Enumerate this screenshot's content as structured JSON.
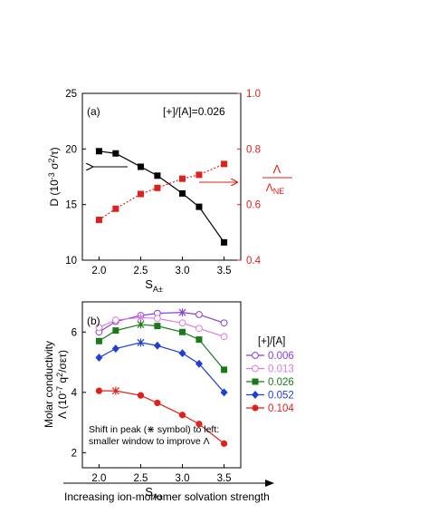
{
  "chart_data": [
    {
      "panel_label": "(a)",
      "type": "line",
      "annotation": "[+]/[A]=0.026",
      "x_label": {
        "main": "S",
        "sub": "A±"
      },
      "x_ticks": [
        "2.0",
        "2.5",
        "3.0",
        "3.5"
      ],
      "xlim": [
        1.8,
        3.7
      ],
      "x": [
        2.0,
        2.2,
        2.5,
        2.7,
        3.0,
        3.2,
        3.5
      ],
      "left_axis": {
        "label": {
          "pre": "D (10",
          "exp1": "-3",
          "mid": " σ",
          "exp2": "2",
          "post": "/τ)"
        },
        "ylim": [
          10,
          25
        ],
        "ticks": [
          "10",
          "15",
          "20",
          "25"
        ],
        "color": "#000000"
      },
      "right_axis": {
        "label_num": "Λ",
        "label_den": {
          "main": "Λ",
          "sub": "NE"
        },
        "ylim": [
          0.4,
          1.0
        ],
        "ticks": [
          "0.4",
          "0.6",
          "0.8",
          "1.0"
        ],
        "color": "#e0201b"
      },
      "series": [
        {
          "axis": "left",
          "color": "#000000",
          "line": "solid",
          "marker": "square",
          "values": [
            19.8,
            19.6,
            18.4,
            17.6,
            16.0,
            14.8,
            11.6
          ]
        },
        {
          "axis": "right",
          "color": "#e0201b",
          "line": "dotted",
          "marker": "square",
          "values": [
            0.545,
            0.585,
            0.638,
            0.66,
            0.693,
            0.707,
            0.746
          ]
        }
      ],
      "arrows": [
        {
          "points_to": "left_axis",
          "color": "#000000"
        },
        {
          "points_to": "right_axis",
          "color": "#e0201b"
        }
      ]
    },
    {
      "panel_label": "(b)",
      "type": "line",
      "x_label": {
        "main": "S",
        "sub": "A±"
      },
      "x_ticks": [
        "2.0",
        "2.5",
        "3.0",
        "3.5"
      ],
      "xlim": [
        1.8,
        3.7
      ],
      "x": [
        2.0,
        2.2,
        2.5,
        2.7,
        3.0,
        3.2,
        3.5
      ],
      "y_label_line1": "Molar conductivity",
      "y_label_line2": {
        "pre": "Λ (10",
        "exp1": "-7",
        "mid": " q",
        "exp2": "2",
        "post": "/σετ)"
      },
      "ylim": [
        1.5,
        7.0
      ],
      "y_ticks": [
        "2",
        "4",
        "6"
      ],
      "legend_title": "[+]/[A]",
      "legend_position": "right",
      "peak_marker": "x",
      "note_line1": "Shift in peak (⋇ symbol) to left:",
      "note_line2": "smaller window to improve Λ",
      "series": [
        {
          "name": "0.006",
          "color": "#8a3fd1",
          "marker": "circle-open",
          "peak_index": 4,
          "values": [
            6.0,
            6.35,
            6.55,
            6.62,
            6.65,
            6.58,
            6.3
          ]
        },
        {
          "name": "0.013",
          "color": "#d77ee0",
          "marker": "circle-open",
          "peak_index": 2,
          "values": [
            6.15,
            6.4,
            6.48,
            6.45,
            6.3,
            6.12,
            5.85
          ]
        },
        {
          "name": "0.026",
          "color": "#1a7a1a",
          "marker": "square",
          "peak_index": 2,
          "values": [
            5.7,
            6.05,
            6.25,
            6.2,
            6.0,
            5.75,
            4.75
          ]
        },
        {
          "name": "0.052",
          "color": "#1f3fd8",
          "marker": "diamond",
          "peak_index": 2,
          "values": [
            5.15,
            5.45,
            5.65,
            5.55,
            5.3,
            4.95,
            4.0
          ]
        },
        {
          "name": "0.104",
          "color": "#e0201b",
          "marker": "circle",
          "peak_index": 1,
          "values": [
            4.05,
            4.05,
            3.9,
            3.65,
            3.25,
            2.95,
            2.3
          ]
        }
      ]
    }
  ],
  "footer": {
    "caption": "Increasing ion-monomer solvation strength"
  }
}
